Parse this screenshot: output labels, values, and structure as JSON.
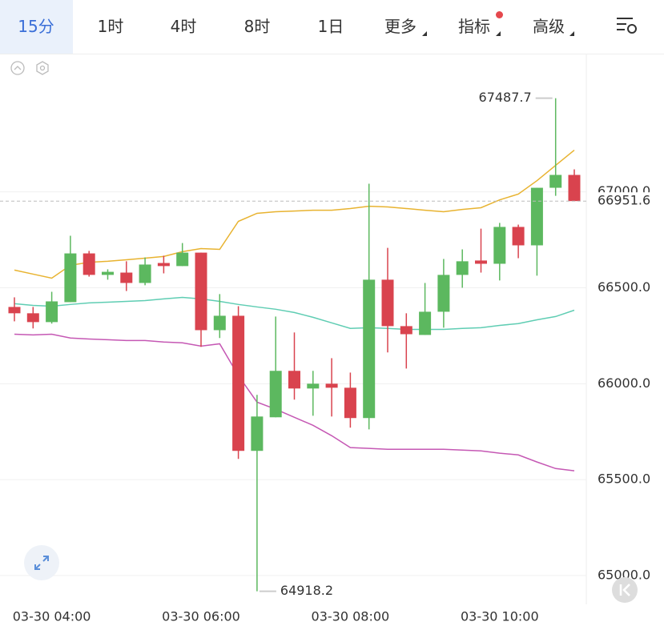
{
  "tabs": [
    "15分",
    "1时",
    "4时",
    "8时",
    "1日",
    "更多",
    "指标",
    "高级"
  ],
  "active_tab": 0,
  "chart_data": {
    "type": "candlestick",
    "categories": [
      null,
      null,
      "03-30 04:00",
      null,
      null,
      null,
      null,
      null,
      null,
      null,
      "03-30 06:00",
      null,
      null,
      null,
      null,
      null,
      null,
      null,
      "03-30 08:00",
      null,
      null,
      null,
      null,
      null,
      null,
      null,
      "03-30 10:00",
      null,
      null,
      null,
      null
    ],
    "open": [
      66400,
      66367,
      66321,
      66425,
      66679,
      66567,
      66579,
      66525,
      66629,
      66613,
      66683,
      66279,
      66354,
      65650,
      65825,
      66067,
      65975,
      66000,
      65979,
      65821,
      66542,
      66300,
      66254,
      66375,
      66567,
      66642,
      66625,
      66817,
      66721,
      67021,
      67088
    ],
    "high": [
      66450,
      66400,
      66479,
      66771,
      66692,
      66596,
      66638,
      66658,
      66667,
      66733,
      66683,
      66467,
      66404,
      65942,
      66350,
      66267,
      66067,
      66133,
      66058,
      67042,
      66708,
      66367,
      66525,
      66650,
      66700,
      66808,
      66838,
      66829,
      67021,
      67487.7,
      67117
    ],
    "low": [
      66325,
      66288,
      66313,
      66425,
      66558,
      66542,
      66483,
      66513,
      66575,
      66613,
      66192,
      66238,
      65608,
      64918.2,
      65825,
      65917,
      65833,
      65829,
      65771,
      65762,
      66163,
      66079,
      66254,
      66292,
      66500,
      66579,
      66538,
      66654,
      66563,
      66979,
      66951.6
    ],
    "close": [
      66367,
      66321,
      66429,
      66679,
      66567,
      66583,
      66525,
      66621,
      66613,
      66683,
      66279,
      66354,
      65650,
      65829,
      66067,
      65975,
      66000,
      65979,
      65821,
      66542,
      66300,
      66258,
      66375,
      66567,
      66638,
      66625,
      66817,
      66721,
      67021,
      67088,
      66951.6
    ],
    "up_color": "#5cb85f",
    "down_color": "#d9434e",
    "overlays": [
      {
        "color": "#e8b330",
        "values": [
          66592,
          66571,
          66550,
          66617,
          66633,
          66638,
          66646,
          66654,
          66663,
          66688,
          66704,
          66700,
          66846,
          66888,
          66896,
          66900,
          66904,
          66904,
          66913,
          66925,
          66921,
          66913,
          66904,
          66896,
          66908,
          66917,
          66958,
          66988,
          67058,
          67138,
          67217
        ]
      },
      {
        "color": "#5fcdb3",
        "values": [
          66417,
          66408,
          66404,
          66413,
          66421,
          66425,
          66429,
          66433,
          66442,
          66450,
          66442,
          66429,
          66413,
          66400,
          66388,
          66371,
          66346,
          66317,
          66288,
          66292,
          66288,
          66283,
          66283,
          66283,
          66288,
          66292,
          66304,
          66313,
          66333,
          66350,
          66383
        ]
      },
      {
        "color": "#c558b4",
        "values": [
          66258,
          66254,
          66258,
          66238,
          66233,
          66229,
          66225,
          66225,
          66217,
          66213,
          66196,
          66208,
          66042,
          65904,
          65867,
          65825,
          65783,
          65729,
          65667,
          65663,
          65658,
          65658,
          65658,
          65658,
          65654,
          65650,
          65638,
          65629,
          65592,
          65558,
          65546
        ]
      }
    ],
    "ylim": [
      64850,
      67720
    ],
    "yticks": [
      {
        "value": 65000,
        "label": "65000.0"
      },
      {
        "value": 65500,
        "label": "65500.0"
      },
      {
        "value": 66000,
        "label": "66000.0"
      },
      {
        "value": 66500,
        "label": "66500.0"
      },
      {
        "value": 67000,
        "label": "67000.0"
      }
    ],
    "grid": true
  }
}
